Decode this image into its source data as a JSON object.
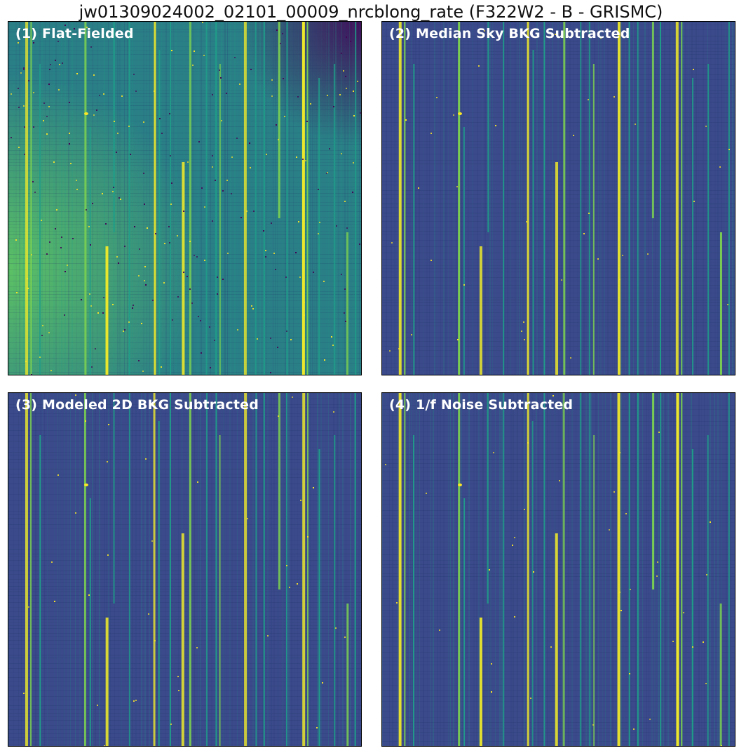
{
  "figure": {
    "title": "jw01309024002_02101_00009_nrcblong_rate (F322W2 - B - GRISMC)"
  },
  "colors": {
    "flat_bg": "#2a7f86",
    "flat_glow": "#5fc463",
    "sub_bg": "#3a4a8a",
    "streak_bright": "#f0ea2a",
    "streak_mid": "#7cd250",
    "streak_faint": "#1f9e89",
    "hot_pixel": "#fde725",
    "dark_pixel": "#440154"
  },
  "panels": [
    {
      "id": "panel-1",
      "label": "(1) Flat-Fielded",
      "background": "flat"
    },
    {
      "id": "panel-2",
      "label": "(2) Median Sky BKG Subtracted",
      "background": "subtracted"
    },
    {
      "id": "panel-3",
      "label": "(3) Modeled 2D BKG Subtracted",
      "background": "subtracted"
    },
    {
      "id": "panel-4",
      "label": "(4) 1/f Noise Subtracted",
      "background": "subtracted"
    }
  ]
}
